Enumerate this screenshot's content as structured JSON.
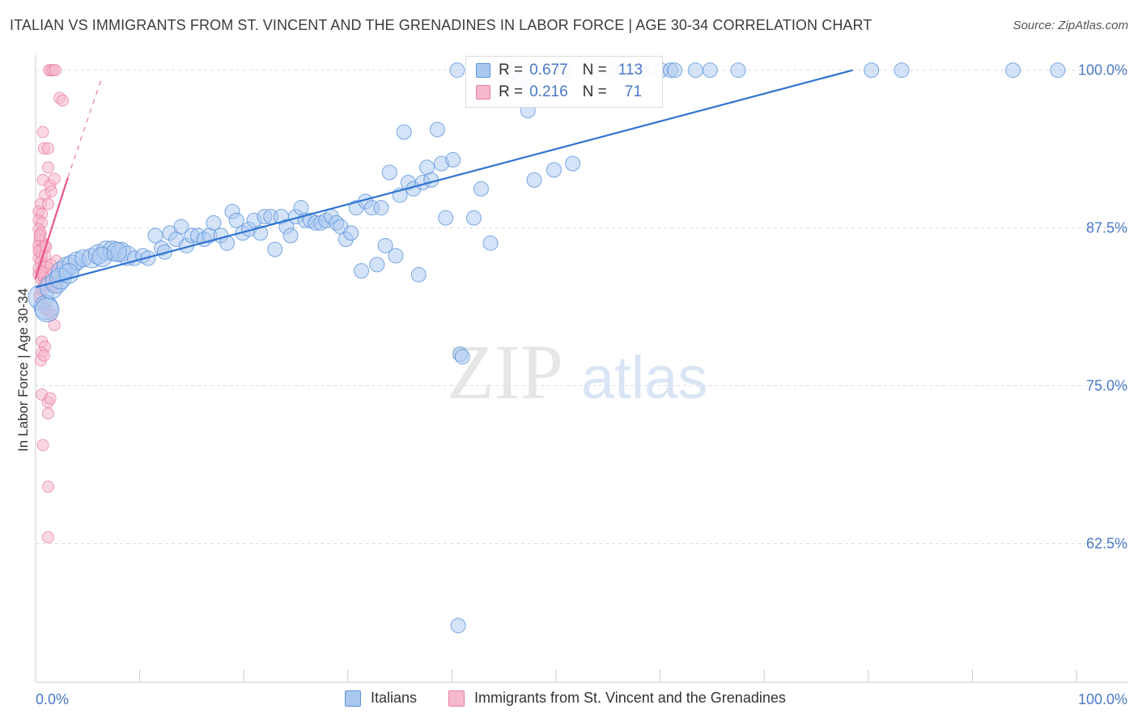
{
  "title": "ITALIAN VS IMMIGRANTS FROM ST. VINCENT AND THE GRENADINES IN LABOR FORCE | AGE 30-34 CORRELATION CHART",
  "source": "Source: ZipAtlas.com",
  "watermark": {
    "zip": "ZIP",
    "atlas": "atlas"
  },
  "legend": {
    "italians": {
      "r_label": "R =",
      "r_value": "0.677",
      "n_label": "N =",
      "n_value": "113"
    },
    "svg": {
      "r_label": "R =",
      "r_value": "0.216",
      "n_label": "N =",
      "n_value": "71"
    }
  },
  "bottom_legend": {
    "italians": "Italians",
    "svg": "Immigrants from St. Vincent and the Grenadines"
  },
  "colors": {
    "blue_fill": "#a9c8f0",
    "blue_stroke": "#5d93dc",
    "blue_line": "#2f74d0",
    "pink_fill": "#f6b8cc",
    "pink_stroke": "#e97fa2",
    "pink_line": "#e9558a",
    "grid": "#dddddd",
    "tick_text": "#4a78c8"
  },
  "chart_data": {
    "type": "scatter",
    "title": "ITALIAN VS IMMIGRANTS FROM ST. VINCENT AND THE GRENADINES IN LABOR FORCE | AGE 30-34 CORRELATION CHART",
    "xlabel": "",
    "ylabel": "In Labor Force | Age 30-34",
    "xlim": [
      0,
      100
    ],
    "ylim": [
      51.5,
      101.2
    ],
    "x_tick_labels": [
      "0.0%",
      "100.0%"
    ],
    "y_ticks": [
      62.5,
      75.0,
      87.5,
      100.0
    ],
    "y_tick_labels": [
      "62.5%",
      "75.0%",
      "87.5%",
      "100.0%"
    ],
    "grid": true,
    "series": [
      {
        "name": "Italians",
        "r": 0.677,
        "n": 113,
        "trend": {
          "x0": 0.0,
          "y0": 82.8,
          "x1": 78.5,
          "y1": 100.0
        },
        "points": [
          [
            0.5,
            82.0
          ],
          [
            1.0,
            81.2
          ],
          [
            1.5,
            82.8
          ],
          [
            2.0,
            83.2
          ],
          [
            2.5,
            84.0
          ],
          [
            3.0,
            84.4
          ],
          [
            3.5,
            84.6
          ],
          [
            4.0,
            84.9
          ],
          [
            4.6,
            85.1
          ],
          [
            5.4,
            85.1
          ],
          [
            6.0,
            85.4
          ],
          [
            6.8,
            85.7
          ],
          [
            7.4,
            85.7
          ],
          [
            8.2,
            85.6
          ],
          [
            8.8,
            85.3
          ],
          [
            9.5,
            85.1
          ],
          [
            10.3,
            85.3
          ],
          [
            10.8,
            85.1
          ],
          [
            11.5,
            86.9
          ],
          [
            12.1,
            85.9
          ],
          [
            12.4,
            85.6
          ],
          [
            12.9,
            87.1
          ],
          [
            13.5,
            86.6
          ],
          [
            14.0,
            87.6
          ],
          [
            14.5,
            86.1
          ],
          [
            15.0,
            86.9
          ],
          [
            15.6,
            86.9
          ],
          [
            16.2,
            86.6
          ],
          [
            16.7,
            86.9
          ],
          [
            17.1,
            87.9
          ],
          [
            17.8,
            86.9
          ],
          [
            18.4,
            86.3
          ],
          [
            18.9,
            88.8
          ],
          [
            19.3,
            88.1
          ],
          [
            19.9,
            87.1
          ],
          [
            20.5,
            87.4
          ],
          [
            21.0,
            88.1
          ],
          [
            21.6,
            87.1
          ],
          [
            22.0,
            88.4
          ],
          [
            22.6,
            88.4
          ],
          [
            23.0,
            85.8
          ],
          [
            23.6,
            88.4
          ],
          [
            24.1,
            87.6
          ],
          [
            24.5,
            86.9
          ],
          [
            25.0,
            88.4
          ],
          [
            25.5,
            89.1
          ],
          [
            25.9,
            88.1
          ],
          [
            26.4,
            88.1
          ],
          [
            26.9,
            87.9
          ],
          [
            27.4,
            87.9
          ],
          [
            27.9,
            88.1
          ],
          [
            28.4,
            88.4
          ],
          [
            28.9,
            87.9
          ],
          [
            29.3,
            87.6
          ],
          [
            29.8,
            86.6
          ],
          [
            30.3,
            87.1
          ],
          [
            30.8,
            89.1
          ],
          [
            31.3,
            84.1
          ],
          [
            31.7,
            89.6
          ],
          [
            32.3,
            89.1
          ],
          [
            32.8,
            84.6
          ],
          [
            33.2,
            89.1
          ],
          [
            33.6,
            86.1
          ],
          [
            34.0,
            91.9
          ],
          [
            34.6,
            85.3
          ],
          [
            35.0,
            90.1
          ],
          [
            35.4,
            95.1
          ],
          [
            35.8,
            91.1
          ],
          [
            36.3,
            90.6
          ],
          [
            36.8,
            83.8
          ],
          [
            37.2,
            91.1
          ],
          [
            37.6,
            92.3
          ],
          [
            38.0,
            91.3
          ],
          [
            38.6,
            95.3
          ],
          [
            39.0,
            92.6
          ],
          [
            39.4,
            88.3
          ],
          [
            40.1,
            92.9
          ],
          [
            40.8,
            77.5
          ],
          [
            41.0,
            77.3
          ],
          [
            42.1,
            88.3
          ],
          [
            42.8,
            90.6
          ],
          [
            43.7,
            86.3
          ],
          [
            46.5,
            99.0
          ],
          [
            47.3,
            96.8
          ],
          [
            47.3,
            98.5
          ],
          [
            47.9,
            91.3
          ],
          [
            49.8,
            92.1
          ],
          [
            51.6,
            92.6
          ],
          [
            40.6,
            56.0
          ],
          [
            40.5,
            100.0
          ],
          [
            45.8,
            100.0
          ],
          [
            50.8,
            100.0
          ],
          [
            53.0,
            100.0
          ],
          [
            53.9,
            100.0
          ],
          [
            55.2,
            100.0
          ],
          [
            56.6,
            100.0
          ],
          [
            58.0,
            100.0
          ],
          [
            58.4,
            100.0
          ],
          [
            60.1,
            100.0
          ],
          [
            61.0,
            100.0
          ],
          [
            61.4,
            100.0
          ],
          [
            63.4,
            100.0
          ],
          [
            64.8,
            100.0
          ],
          [
            67.5,
            100.0
          ],
          [
            80.3,
            100.0
          ],
          [
            83.2,
            100.0
          ],
          [
            93.9,
            100.0
          ],
          [
            98.2,
            100.0
          ],
          [
            1.1,
            81.0
          ],
          [
            2.4,
            83.5
          ],
          [
            3.2,
            83.9
          ],
          [
            6.4,
            85.2
          ],
          [
            7.8,
            85.6
          ]
        ]
      },
      {
        "name": "Immigrants from St. Vincent and the Grenadines",
        "r": 0.216,
        "n": 71,
        "trend_solid": {
          "x0": 0.0,
          "y0": 83.5,
          "x1": 3.1,
          "y1": 91.5
        },
        "trend_dashed": {
          "x0": 3.1,
          "y0": 91.5,
          "x1": 6.4,
          "y1": 99.5
        },
        "points": [
          [
            1.3,
            100.0
          ],
          [
            1.5,
            100.0
          ],
          [
            1.7,
            100.0
          ],
          [
            1.9,
            100.0
          ],
          [
            2.3,
            97.8
          ],
          [
            2.6,
            97.6
          ],
          [
            0.7,
            95.1
          ],
          [
            0.8,
            93.8
          ],
          [
            1.2,
            93.8
          ],
          [
            1.2,
            92.3
          ],
          [
            0.7,
            91.3
          ],
          [
            1.4,
            90.9
          ],
          [
            1.8,
            91.4
          ],
          [
            0.9,
            90.1
          ],
          [
            1.5,
            90.4
          ],
          [
            0.5,
            89.4
          ],
          [
            1.2,
            89.4
          ],
          [
            0.3,
            88.8
          ],
          [
            0.6,
            88.6
          ],
          [
            0.3,
            88.1
          ],
          [
            0.6,
            87.9
          ],
          [
            0.3,
            87.4
          ],
          [
            0.5,
            87.1
          ],
          [
            0.4,
            86.6
          ],
          [
            0.6,
            86.4
          ],
          [
            0.3,
            86.1
          ],
          [
            0.7,
            85.9
          ],
          [
            0.9,
            86.1
          ],
          [
            0.4,
            85.6
          ],
          [
            0.6,
            85.3
          ],
          [
            0.3,
            85.1
          ],
          [
            0.5,
            84.8
          ],
          [
            0.8,
            84.6
          ],
          [
            0.3,
            84.3
          ],
          [
            0.6,
            84.1
          ],
          [
            1.0,
            84.4
          ],
          [
            1.5,
            84.6
          ],
          [
            1.7,
            83.9
          ],
          [
            2.0,
            84.9
          ],
          [
            0.3,
            83.8
          ],
          [
            0.5,
            83.5
          ],
          [
            0.8,
            83.6
          ],
          [
            1.2,
            83.2
          ],
          [
            1.6,
            82.9
          ],
          [
            2.0,
            82.8
          ],
          [
            0.4,
            82.3
          ],
          [
            0.6,
            81.6
          ],
          [
            0.9,
            81.1
          ],
          [
            1.3,
            80.9
          ],
          [
            1.5,
            80.6
          ],
          [
            1.8,
            79.8
          ],
          [
            0.6,
            78.5
          ],
          [
            0.9,
            78.1
          ],
          [
            0.6,
            77.6
          ],
          [
            0.5,
            77.0
          ],
          [
            0.8,
            77.4
          ],
          [
            0.6,
            74.3
          ],
          [
            1.2,
            73.7
          ],
          [
            1.4,
            74.0
          ],
          [
            1.2,
            72.8
          ],
          [
            0.7,
            70.3
          ],
          [
            1.2,
            67.0
          ],
          [
            1.2,
            63.0
          ],
          [
            0.4,
            82.0
          ],
          [
            0.7,
            82.6
          ],
          [
            0.3,
            85.7
          ],
          [
            0.9,
            85.3
          ],
          [
            0.4,
            86.9
          ],
          [
            1.0,
            86.0
          ],
          [
            0.5,
            84.0
          ],
          [
            0.8,
            83.0
          ]
        ]
      }
    ]
  }
}
